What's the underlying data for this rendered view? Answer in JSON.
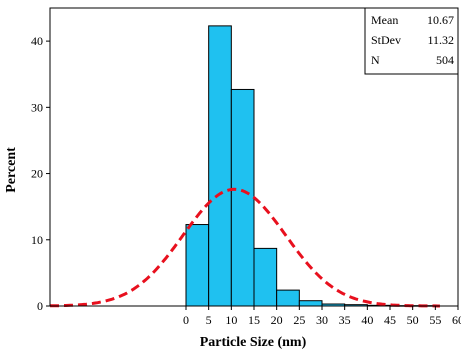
{
  "chart_data": {
    "type": "bar",
    "subtype": "histogram-with-normal-fit",
    "title": "",
    "xlabel": "Particle Size (nm)",
    "ylabel": "Percent",
    "xlim": [
      -30,
      60
    ],
    "ylim": [
      0,
      45
    ],
    "x_ticks": [
      "0",
      "5",
      "10",
      "15",
      "20",
      "25",
      "30",
      "35",
      "40",
      "45",
      "50",
      "55",
      "60"
    ],
    "y_ticks": [
      "0",
      "10",
      "20",
      "30",
      "40"
    ],
    "bin_edges": [
      0,
      5,
      10,
      15,
      20,
      25,
      30,
      35,
      40,
      45,
      50,
      55
    ],
    "values": [
      12.3,
      42.3,
      32.7,
      8.7,
      2.4,
      0.8,
      0.3,
      0.2,
      0.1,
      0.05,
      0.05
    ],
    "bar_color": "#1FC1F0",
    "bar_edge_color": "#000000",
    "fit_curve": {
      "type": "normal",
      "mean": 10.67,
      "stdev": 11.32,
      "color": "#E8101E",
      "style": "dashed"
    },
    "stats_box": {
      "placement": "top-right",
      "rows": [
        {
          "label": "Mean",
          "value": "10.67"
        },
        {
          "label": "StDev",
          "value": "11.32"
        },
        {
          "label": "N",
          "value": "504"
        }
      ]
    },
    "grid": false
  }
}
